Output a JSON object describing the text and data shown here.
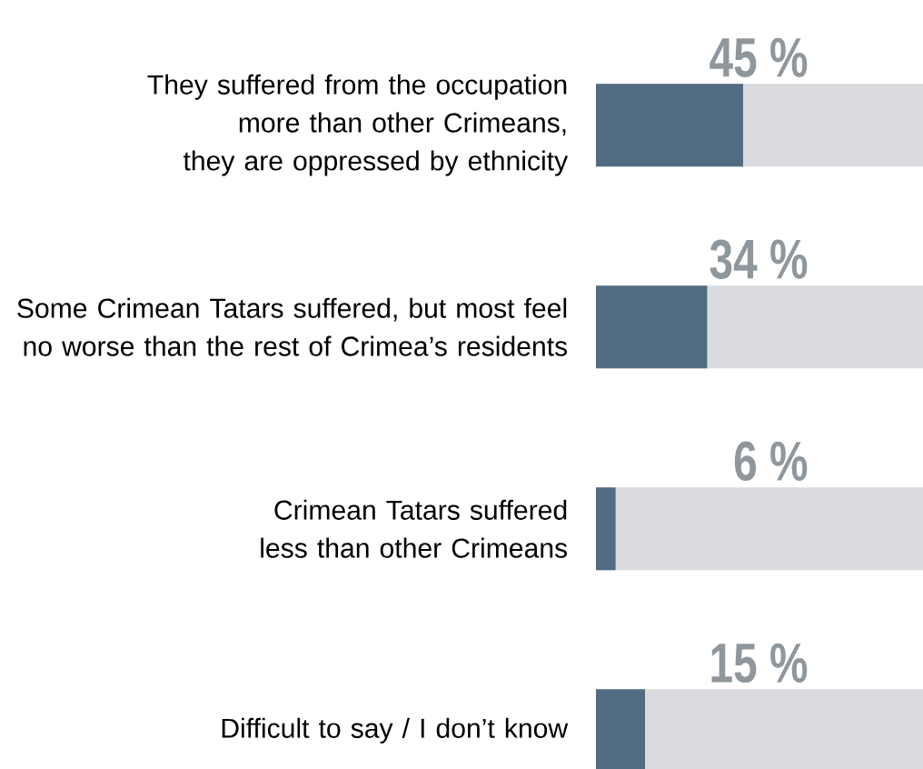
{
  "chart_data": {
    "type": "bar",
    "orientation": "horizontal",
    "categories": [
      "They suffered from the occupation more than other Crimeans, they are oppressed by ethnicity",
      "Some Crimean Tatars suffered, but most feel no worse than the rest of Crimea’s residents",
      "Crimean Tatars suffered less than other Crimeans",
      "Difficult to say / I don’t know"
    ],
    "values": [
      45,
      34,
      6,
      15
    ],
    "value_labels": [
      "45 %",
      "34 %",
      "6 %",
      "15 %"
    ],
    "color": "#506b82",
    "xlim": [
      0,
      100
    ],
    "tick_labels": "y"
  }
}
